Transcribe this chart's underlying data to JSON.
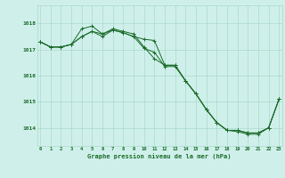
{
  "bg_color": "#cff0ea",
  "grid_color": "#aad8cc",
  "line_color": "#1a6b2a",
  "title": "Graphe pression niveau de la mer (hPa)",
  "hours": [
    0,
    1,
    2,
    3,
    4,
    5,
    6,
    7,
    8,
    9,
    10,
    11,
    12,
    13,
    14,
    15,
    16,
    17,
    18,
    19,
    20,
    21,
    22,
    23
  ],
  "yticks": [
    1014,
    1015,
    1016,
    1017,
    1018
  ],
  "ylim": [
    1013.3,
    1018.7
  ],
  "xlim": [
    -0.3,
    23.3
  ],
  "series1": [
    1017.3,
    1017.1,
    1017.1,
    1017.2,
    1017.8,
    1017.9,
    1017.6,
    1017.8,
    1017.7,
    1017.6,
    1017.1,
    1016.65,
    1016.4,
    1016.4,
    1015.8,
    1015.3,
    1014.7,
    1014.2,
    1013.9,
    1013.9,
    1013.8,
    1013.8,
    1014.0,
    1015.1
  ],
  "series2": [
    1017.3,
    1017.1,
    1017.1,
    1017.2,
    1017.5,
    1017.7,
    1017.5,
    1017.75,
    1017.65,
    1017.5,
    1017.4,
    1017.35,
    1016.4,
    1016.4,
    1015.8,
    1015.3,
    1014.7,
    1014.2,
    1013.9,
    1013.9,
    1013.8,
    1013.8,
    1014.0,
    1015.1
  ],
  "series3": [
    1017.3,
    1017.1,
    1017.1,
    1017.2,
    1017.5,
    1017.7,
    1017.6,
    1017.75,
    1017.65,
    1017.5,
    1017.05,
    1016.9,
    1016.35,
    1016.35,
    1015.8,
    1015.3,
    1014.7,
    1014.2,
    1013.9,
    1013.85,
    1013.75,
    1013.75,
    1014.0,
    1015.1
  ]
}
